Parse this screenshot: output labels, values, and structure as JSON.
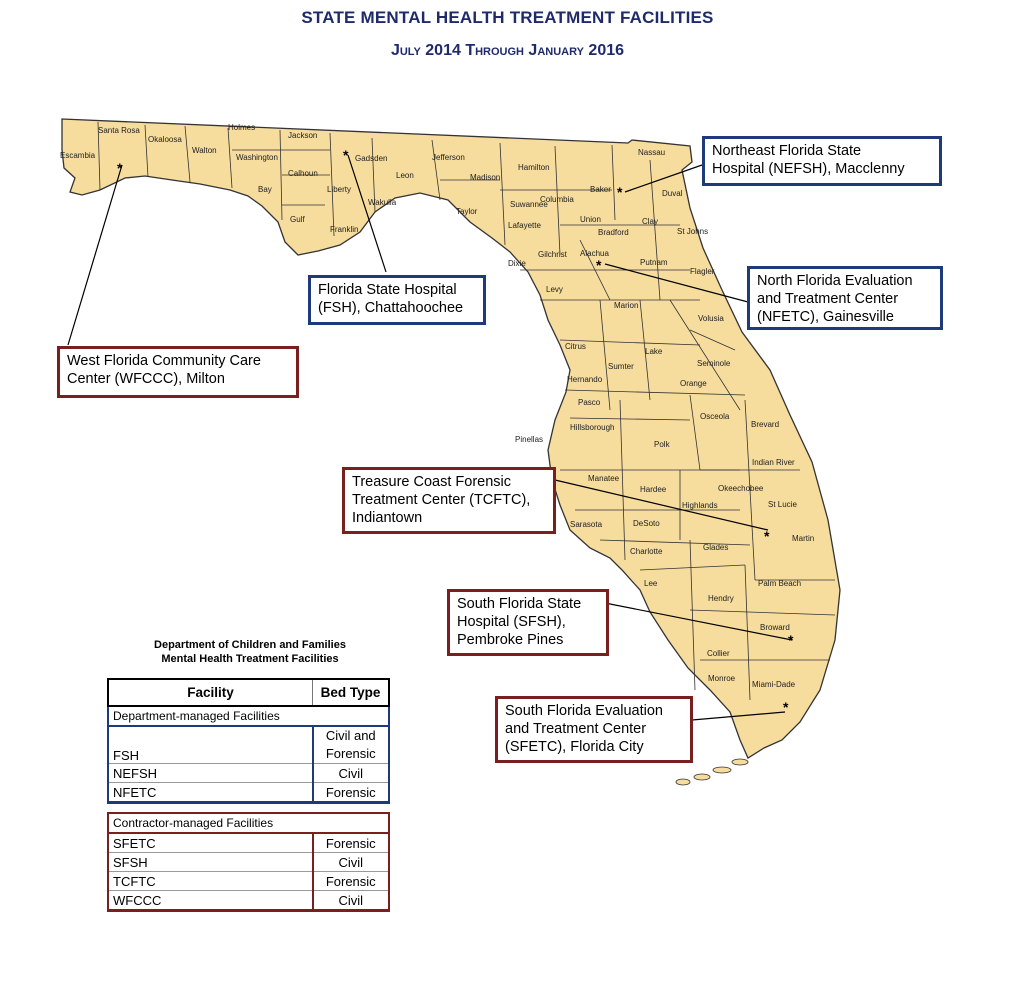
{
  "title": "STATE MENTAL HEALTH TREATMENT FACILITIES",
  "subtitle": "July 2014 Through January 2016",
  "colors": {
    "land": "#f6dc9d",
    "county_border": "#333333",
    "title": "#1f2a6b",
    "blue_box": "#1f3a7a",
    "red_box": "#7a1f1f"
  },
  "counties": [
    "Escambia",
    "Santa Rosa",
    "Okaloosa",
    "Walton",
    "Holmes",
    "Washington",
    "Jackson",
    "Bay",
    "Calhoun",
    "Gulf",
    "Gadsden",
    "Liberty",
    "Franklin",
    "Wakulla",
    "Leon",
    "Jefferson",
    "Madison",
    "Taylor",
    "Hamilton",
    "Suwannee",
    "Lafayette",
    "Columbia",
    "Baker",
    "Nassau",
    "Duval",
    "Union",
    "Bradford",
    "Clay",
    "St Johns",
    "Dixie",
    "Gilchrist",
    "Alachua",
    "Putnam",
    "Flagler",
    "Levy",
    "Marion",
    "Volusia",
    "Citrus",
    "Lake",
    "Seminole",
    "Sumter",
    "Hernando",
    "Orange",
    "Pasco",
    "Osceola",
    "Brevard",
    "Pinellas",
    "Hillsborough",
    "Polk",
    "Indian River",
    "Manatee",
    "Hardee",
    "Okeechobee",
    "St Lucie",
    "Highlands",
    "Sarasota",
    "DeSoto",
    "Martin",
    "Charlotte",
    "Glades",
    "Palm Beach",
    "Lee",
    "Hendry",
    "Broward",
    "Collier",
    "Monroe",
    "Miami-Dade"
  ],
  "callouts": {
    "nefsh": {
      "lines": [
        "Northeast Florida State",
        "Hospital (NEFSH), Macclenny"
      ]
    },
    "nfetc": {
      "lines": [
        "North Florida Evaluation",
        "and Treatment Center",
        "(NFETC), Gainesville"
      ]
    },
    "fsh": {
      "lines": [
        "Florida State Hospital",
        "(FSH), Chattahoochee"
      ]
    },
    "wfccc": {
      "lines": [
        "West Florida Community Care",
        "Center (WFCCC), Milton"
      ]
    },
    "tcftc": {
      "lines": [
        "Treasure Coast Forensic",
        "Treatment Center (TCFTC),",
        "Indiantown"
      ]
    },
    "sfsh": {
      "lines": [
        "South Florida State",
        "Hospital (SFSH),",
        "Pembroke Pines"
      ]
    },
    "sfetc": {
      "lines": [
        "South Florida Evaluation",
        "and Treatment Center",
        "(SFETC), Florida City"
      ]
    }
  },
  "marker_symbol": "*",
  "table": {
    "caption_line1": "Department of Children and Families",
    "caption_line2": "Mental Health Treatment Facilities",
    "headers": [
      "Facility",
      "Bed Type"
    ],
    "dept_section": {
      "label": "Department-managed Facilities",
      "rows": [
        {
          "facility": "FSH",
          "bed_type_line1": "Civil and",
          "bed_type_line2": "Forensic"
        },
        {
          "facility": "NEFSH",
          "bed_type": "Civil"
        },
        {
          "facility": "NFETC",
          "bed_type": "Forensic"
        }
      ]
    },
    "contractor_section": {
      "label": "Contractor-managed Facilities",
      "rows": [
        {
          "facility": "SFETC",
          "bed_type": "Forensic"
        },
        {
          "facility": "SFSH",
          "bed_type": "Civil"
        },
        {
          "facility": "TCFTC",
          "bed_type": "Forensic"
        },
        {
          "facility": "WFCCC",
          "bed_type": "Civil"
        }
      ]
    }
  }
}
